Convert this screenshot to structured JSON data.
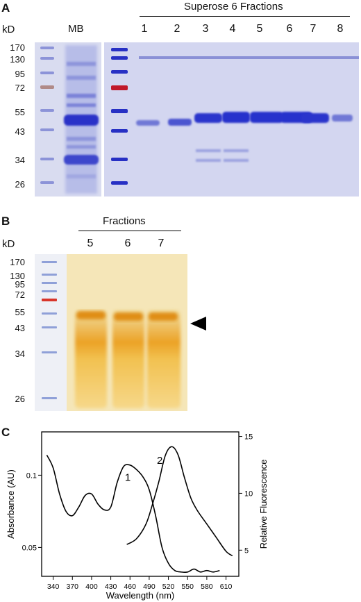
{
  "panelA": {
    "letter": "A",
    "unit": "kD",
    "header": "Superose 6 Fractions",
    "lane_mb": "MB",
    "lanes": [
      "1",
      "2",
      "3",
      "4",
      "5",
      "6",
      "7",
      "8"
    ],
    "mw": [
      "170",
      "130",
      "95",
      "72",
      "55",
      "43",
      "34",
      "26"
    ]
  },
  "panelB": {
    "letter": "B",
    "unit": "kD",
    "header": "Fractions",
    "lanes": [
      "5",
      "6",
      "7"
    ],
    "mw": [
      "170",
      "130",
      "95",
      "72",
      "55",
      "43",
      "34",
      "26"
    ]
  },
  "panelC": {
    "letter": "C",
    "chart_data": {
      "type": "line",
      "xlabel": "Wavelength (nm)",
      "ylabel": "Absorbance (AU)",
      "y2label": "Relative Fluorescence",
      "xticks": [
        "340",
        "370",
        "400",
        "430",
        "460",
        "490",
        "520",
        "550",
        "580",
        "610"
      ],
      "yticks": [
        "0.05",
        "0.1"
      ],
      "y2ticks": [
        "5",
        "10",
        "15"
      ],
      "series": [
        {
          "name": "1",
          "axis": "left",
          "x": [
            330,
            340,
            350,
            360,
            370,
            380,
            390,
            400,
            410,
            420,
            430,
            440,
            450,
            460,
            470,
            480,
            490,
            500,
            510,
            520,
            530,
            540,
            550,
            560,
            570,
            580,
            590,
            600
          ],
          "y": [
            0.114,
            0.105,
            0.087,
            0.075,
            0.072,
            0.078,
            0.086,
            0.087,
            0.08,
            0.076,
            0.078,
            0.095,
            0.106,
            0.107,
            0.104,
            0.099,
            0.09,
            0.072,
            0.05,
            0.039,
            0.034,
            0.033,
            0.033,
            0.035,
            0.033,
            0.034,
            0.033,
            0.034
          ]
        },
        {
          "name": "2",
          "axis": "right",
          "x": [
            455,
            470,
            485,
            495,
            505,
            515,
            525,
            535,
            545,
            555,
            565,
            580,
            595,
            610,
            620
          ],
          "y": [
            5.5,
            6.0,
            7.3,
            9.0,
            11.0,
            13.3,
            14.1,
            13.4,
            11.4,
            9.6,
            8.5,
            7.3,
            6.1,
            4.9,
            4.5
          ]
        }
      ]
    }
  }
}
